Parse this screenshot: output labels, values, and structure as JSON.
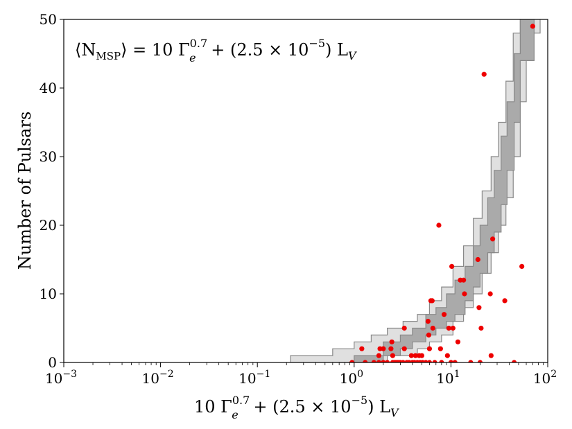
{
  "chart_data": {
    "type": "scatter",
    "title": "",
    "annotation": {
      "lhs_open": "⟨N",
      "lhs_sub": "MSP",
      "lhs_close": "⟩ = 10 Γ",
      "gamma_sup": "0.7",
      "gamma_sub": "e",
      "rest": " + (2.5 × 10",
      "exp": "−5",
      "rest2": ") L",
      "lv_sub": "V"
    },
    "xlabel": {
      "pre": "10 Γ",
      "sup": "0.7",
      "sub": "e",
      "mid": " + (2.5 × 10",
      "exp": "−5",
      "post": ") L",
      "lv_sub": "V"
    },
    "ylabel": "Number of Pulsars",
    "x_scale": "log",
    "xlim": [
      0.001,
      100
    ],
    "ylim": [
      0,
      50
    ],
    "x_ticks": [
      {
        "value": 0.001,
        "base": "10",
        "exp": "−3"
      },
      {
        "value": 0.01,
        "base": "10",
        "exp": "−2"
      },
      {
        "value": 0.1,
        "base": "10",
        "exp": "−1"
      },
      {
        "value": 1,
        "base": "10",
        "exp": "0"
      },
      {
        "value": 10,
        "base": "10",
        "exp": "1"
      },
      {
        "value": 100,
        "base": "10",
        "exp": "2"
      }
    ],
    "y_ticks": [
      0,
      10,
      20,
      30,
      40,
      50
    ],
    "grid": false,
    "colors": {
      "points": "#ee0000",
      "band_inner": "#aaaaaa",
      "band_outer": "#e0e0e0",
      "band_edge": "#888888"
    },
    "band_inner": {
      "x": [
        0.7,
        1.0,
        2.0,
        3.0,
        4.0,
        5.5,
        7.0,
        9.0,
        11.0,
        14.0,
        17.0,
        20.0,
        24.0,
        28.0,
        33.0,
        38.0,
        45.0,
        52.0
      ],
      "lower": [
        0,
        0,
        1,
        2,
        3,
        4,
        5,
        6,
        7,
        9,
        11,
        13,
        16,
        19,
        23,
        28,
        35,
        44
      ],
      "upper": [
        0,
        1,
        3,
        4,
        5,
        7,
        8,
        10,
        12,
        14,
        17,
        20,
        24,
        28,
        33,
        38,
        45,
        54
      ]
    },
    "band_outer": {
      "x": [
        0.22,
        0.6,
        1.0,
        1.5,
        2.2,
        3.2,
        4.5,
        6.0,
        8.0,
        10.5,
        13.5,
        17.0,
        21.0,
        26.0,
        31.0,
        37.0,
        44.0,
        52.0,
        60.0
      ],
      "lower": [
        0,
        0,
        0,
        0,
        1,
        1,
        2,
        3,
        4,
        6,
        8,
        10,
        13,
        16,
        20,
        24,
        30,
        38,
        48
      ],
      "upper": [
        1,
        2,
        3,
        4,
        5,
        6,
        7,
        9,
        11,
        14,
        17,
        21,
        25,
        30,
        35,
        41,
        48,
        56,
        60
      ]
    },
    "points": [
      {
        "x": 1.2,
        "y": 2
      },
      {
        "x": 0.95,
        "y": 0
      },
      {
        "x": 1.3,
        "y": 0
      },
      {
        "x": 1.6,
        "y": 0
      },
      {
        "x": 1.8,
        "y": 0
      },
      {
        "x": 1.8,
        "y": 1
      },
      {
        "x": 1.85,
        "y": 2
      },
      {
        "x": 2.0,
        "y": 2
      },
      {
        "x": 2.0,
        "y": 0
      },
      {
        "x": 2.2,
        "y": 0
      },
      {
        "x": 2.4,
        "y": 2
      },
      {
        "x": 2.45,
        "y": 3
      },
      {
        "x": 2.5,
        "y": 1
      },
      {
        "x": 2.5,
        "y": 0
      },
      {
        "x": 2.6,
        "y": 0
      },
      {
        "x": 2.7,
        "y": 0
      },
      {
        "x": 2.8,
        "y": 0
      },
      {
        "x": 2.9,
        "y": 0
      },
      {
        "x": 3.0,
        "y": 0
      },
      {
        "x": 3.2,
        "y": 0
      },
      {
        "x": 3.3,
        "y": 5
      },
      {
        "x": 3.3,
        "y": 2
      },
      {
        "x": 3.5,
        "y": 0
      },
      {
        "x": 3.7,
        "y": 0
      },
      {
        "x": 3.9,
        "y": 1
      },
      {
        "x": 4.0,
        "y": 0
      },
      {
        "x": 4.2,
        "y": 0
      },
      {
        "x": 4.3,
        "y": 1
      },
      {
        "x": 4.5,
        "y": 0
      },
      {
        "x": 4.7,
        "y": 1
      },
      {
        "x": 4.8,
        "y": 0
      },
      {
        "x": 5.0,
        "y": 1
      },
      {
        "x": 5.1,
        "y": 0
      },
      {
        "x": 5.5,
        "y": 0
      },
      {
        "x": 5.8,
        "y": 6
      },
      {
        "x": 5.9,
        "y": 4
      },
      {
        "x": 6.0,
        "y": 2
      },
      {
        "x": 6.0,
        "y": 0
      },
      {
        "x": 6.2,
        "y": 9
      },
      {
        "x": 6.4,
        "y": 9
      },
      {
        "x": 6.5,
        "y": 5
      },
      {
        "x": 6.8,
        "y": 0
      },
      {
        "x": 7.5,
        "y": 20
      },
      {
        "x": 7.8,
        "y": 2
      },
      {
        "x": 8.0,
        "y": 0
      },
      {
        "x": 8.5,
        "y": 7
      },
      {
        "x": 9.2,
        "y": 1
      },
      {
        "x": 9.5,
        "y": 5
      },
      {
        "x": 10.0,
        "y": 0
      },
      {
        "x": 10.2,
        "y": 14
      },
      {
        "x": 10.5,
        "y": 5
      },
      {
        "x": 11.0,
        "y": 0
      },
      {
        "x": 11.8,
        "y": 3
      },
      {
        "x": 12.5,
        "y": 12
      },
      {
        "x": 13.5,
        "y": 12
      },
      {
        "x": 13.8,
        "y": 10
      },
      {
        "x": 16.0,
        "y": 0
      },
      {
        "x": 19.0,
        "y": 15
      },
      {
        "x": 19.5,
        "y": 8
      },
      {
        "x": 20.0,
        "y": 0
      },
      {
        "x": 20.5,
        "y": 5
      },
      {
        "x": 22.0,
        "y": 42
      },
      {
        "x": 25.5,
        "y": 10
      },
      {
        "x": 26.0,
        "y": 1
      },
      {
        "x": 27.0,
        "y": 18
      },
      {
        "x": 36.0,
        "y": 9
      },
      {
        "x": 45.0,
        "y": 0
      },
      {
        "x": 54.0,
        "y": 14
      },
      {
        "x": 70.0,
        "y": 49
      }
    ]
  }
}
